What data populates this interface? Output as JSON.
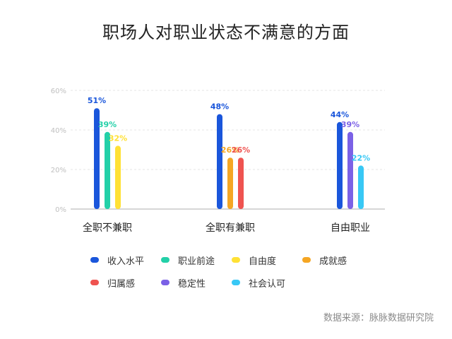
{
  "chart_data": {
    "type": "bar",
    "title": "职场人对职业状态不满意的方面",
    "categories": [
      "全职不兼职",
      "全职有兼职",
      "自由职业"
    ],
    "series": [
      {
        "name": "收入水平",
        "color": "#1a56db",
        "values": [
          51,
          48,
          44
        ]
      },
      {
        "name": "职业前途",
        "color": "#23d0a8",
        "values": [
          39,
          null,
          null
        ]
      },
      {
        "name": "自由度",
        "color": "#ffe135",
        "values": [
          32,
          null,
          null
        ]
      },
      {
        "name": "成就感",
        "color": "#f5a623",
        "values": [
          null,
          26,
          null
        ]
      },
      {
        "name": "归属感",
        "color": "#ef5350",
        "values": [
          null,
          26,
          null
        ]
      },
      {
        "name": "稳定性",
        "color": "#7b61e6",
        "values": [
          null,
          null,
          39
        ]
      },
      {
        "name": "社会认可",
        "color": "#38c8f5",
        "values": [
          null,
          null,
          22
        ]
      }
    ],
    "ylim": [
      0,
      60
    ],
    "yticks": [
      "0%",
      "20%",
      "40%",
      "60%"
    ],
    "value_suffix": "%",
    "grid": true,
    "legend_position": "bottom",
    "axis_color": "#c8c8c8"
  },
  "source_note": "数据来源：脉脉数据研究院"
}
